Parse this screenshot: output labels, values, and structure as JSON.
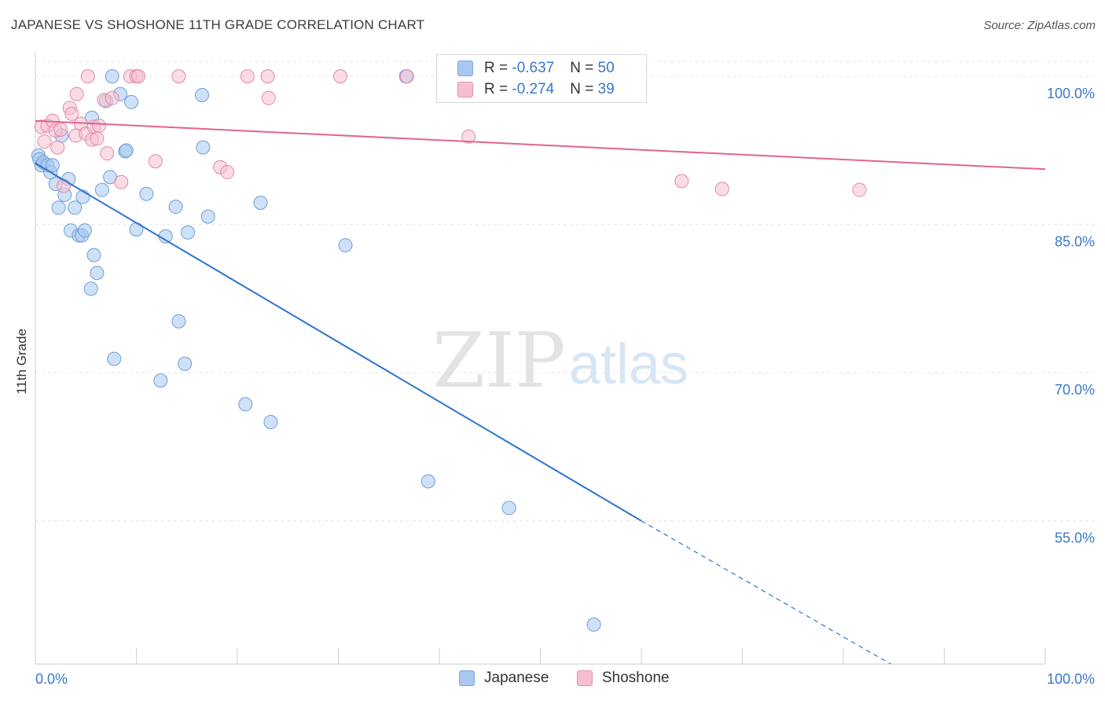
{
  "title": "JAPANESE VS SHOSHONE 11TH GRADE CORRELATION CHART",
  "source": "Source: ZipAtlas.com",
  "watermark": {
    "zip": "ZIP",
    "atlas": "atlas"
  },
  "legend": {
    "rows": [
      {
        "r_label": "R = ",
        "r_value": "-0.637",
        "n_label": "N = ",
        "n_value": "50",
        "color": "#a8c8f0",
        "border": "#7aa6dc"
      },
      {
        "r_label": "R = ",
        "r_value": "-0.274",
        "n_label": "N = ",
        "n_value": "39",
        "color": "#f6bfd0",
        "border": "#e890ab"
      }
    ]
  },
  "bottom_legend": [
    {
      "label": "Japanese",
      "color": "#a8c8f0",
      "border": "#7aa6dc"
    },
    {
      "label": "Shoshone",
      "color": "#f6bfd0",
      "border": "#e890ab"
    }
  ],
  "chart_data": {
    "type": "scatter",
    "ylabel": "11th Grade",
    "xlim": [
      0,
      100
    ],
    "ylim": [
      40.5,
      102
    ],
    "x_tick_labels": [
      "0.0%",
      "100.0%"
    ],
    "y_ticks": [
      {
        "value": 100,
        "label": "100.0%"
      },
      {
        "value": 85,
        "label": "85.0%"
      },
      {
        "value": 70,
        "label": "70.0%"
      },
      {
        "value": 55,
        "label": "55.0%"
      }
    ],
    "grid": true,
    "series": [
      {
        "name": "Japanese",
        "color": "#a8c8f0",
        "stroke": "#6f9fd8",
        "line_color": "#2f74d0",
        "trend": {
          "x0": 0.0,
          "y0": 91.2,
          "x1": 60.0,
          "y1": 55.0,
          "dash_x1": 84.7,
          "dash_y1": 40.5
        },
        "points": [
          [
            0.3,
            92.0
          ],
          [
            0.4,
            91.6
          ],
          [
            0.6,
            91.0
          ],
          [
            0.8,
            91.3
          ],
          [
            1.2,
            91.0
          ],
          [
            1.5,
            90.3
          ],
          [
            1.7,
            91.0
          ],
          [
            2.0,
            89.1
          ],
          [
            2.3,
            86.7
          ],
          [
            2.6,
            94.0
          ],
          [
            2.9,
            88.0
          ],
          [
            3.3,
            89.6
          ],
          [
            3.5,
            84.4
          ],
          [
            3.9,
            86.7
          ],
          [
            4.3,
            83.9
          ],
          [
            4.6,
            83.9
          ],
          [
            4.7,
            87.8
          ],
          [
            4.9,
            84.4
          ],
          [
            5.5,
            78.5
          ],
          [
            5.6,
            95.8
          ],
          [
            5.8,
            81.9
          ],
          [
            6.1,
            80.1
          ],
          [
            6.6,
            88.5
          ],
          [
            7.0,
            97.5
          ],
          [
            7.4,
            89.8
          ],
          [
            7.6,
            100.0
          ],
          [
            7.8,
            71.4
          ],
          [
            8.4,
            98.2
          ],
          [
            8.9,
            92.4
          ],
          [
            9.0,
            92.5
          ],
          [
            9.5,
            97.4
          ],
          [
            10.0,
            84.5
          ],
          [
            11.0,
            88.1
          ],
          [
            12.4,
            69.2
          ],
          [
            12.9,
            83.8
          ],
          [
            13.9,
            86.8
          ],
          [
            14.2,
            75.2
          ],
          [
            14.8,
            70.9
          ],
          [
            15.1,
            84.2
          ],
          [
            16.5,
            98.1
          ],
          [
            16.6,
            92.8
          ],
          [
            17.1,
            85.8
          ],
          [
            20.8,
            66.8
          ],
          [
            22.3,
            87.2
          ],
          [
            23.3,
            65.0
          ],
          [
            30.7,
            82.9
          ],
          [
            36.7,
            100.0
          ],
          [
            38.9,
            59.0
          ],
          [
            46.9,
            56.3
          ],
          [
            55.3,
            44.5
          ]
        ]
      },
      {
        "name": "Shoshone",
        "color": "#f6bfd0",
        "stroke": "#e28aa6",
        "line_color": "#e2648e",
        "trend": {
          "x0": 0.0,
          "y0": 95.5,
          "x1": 100.0,
          "y1": 90.6
        },
        "points": [
          [
            0.6,
            94.9
          ],
          [
            0.9,
            93.4
          ],
          [
            1.2,
            95.0
          ],
          [
            1.7,
            95.5
          ],
          [
            2.0,
            94.5
          ],
          [
            2.2,
            92.8
          ],
          [
            2.5,
            94.6
          ],
          [
            2.8,
            88.9
          ],
          [
            3.4,
            96.8
          ],
          [
            3.6,
            96.2
          ],
          [
            4.0,
            94.0
          ],
          [
            4.1,
            98.2
          ],
          [
            4.5,
            95.2
          ],
          [
            5.0,
            94.2
          ],
          [
            5.2,
            100.0
          ],
          [
            5.6,
            93.6
          ],
          [
            5.8,
            94.9
          ],
          [
            6.1,
            93.7
          ],
          [
            6.3,
            95.0
          ],
          [
            6.8,
            97.6
          ],
          [
            7.1,
            92.2
          ],
          [
            7.6,
            97.8
          ],
          [
            8.5,
            89.3
          ],
          [
            9.4,
            100.0
          ],
          [
            10.0,
            100.0
          ],
          [
            10.2,
            100.0
          ],
          [
            11.9,
            91.4
          ],
          [
            14.2,
            100.0
          ],
          [
            18.3,
            90.8
          ],
          [
            19.0,
            90.3
          ],
          [
            21.0,
            100.0
          ],
          [
            23.0,
            100.0
          ],
          [
            23.1,
            97.8
          ],
          [
            30.2,
            100.0
          ],
          [
            36.8,
            100.0
          ],
          [
            42.9,
            93.9
          ],
          [
            64.0,
            89.4
          ],
          [
            68.0,
            88.6
          ],
          [
            81.6,
            88.5
          ]
        ]
      }
    ]
  }
}
